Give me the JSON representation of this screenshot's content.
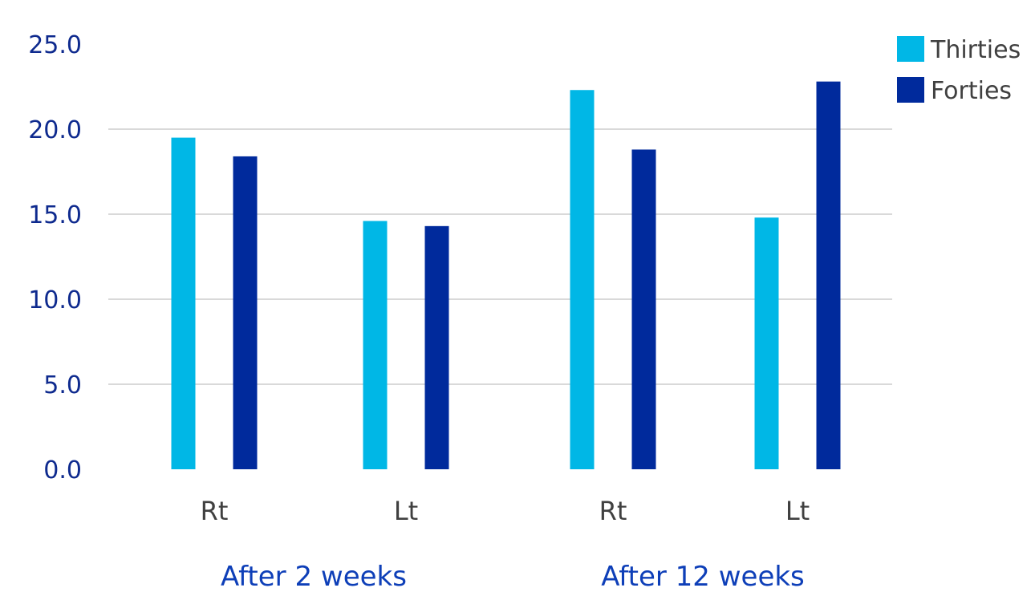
{
  "chart_data": {
    "type": "bar",
    "categories": [
      "Rt",
      "Lt",
      "Rt",
      "Lt"
    ],
    "groups": [
      {
        "label": "After 2 weeks",
        "categories": [
          "Rt",
          "Lt"
        ]
      },
      {
        "label": "After 12 weeks",
        "categories": [
          "Rt",
          "Lt"
        ]
      }
    ],
    "series": [
      {
        "name": "Thirties",
        "color": "#00B7E6",
        "values": [
          19.5,
          14.6,
          22.3,
          14.8
        ]
      },
      {
        "name": "Forties",
        "color": "#002A9C",
        "values": [
          18.4,
          14.3,
          18.8,
          22.8
        ]
      }
    ],
    "ylim": [
      0,
      25
    ],
    "yticks": [
      "0.0",
      "5.0",
      "10.0",
      "15.0",
      "20.0",
      "25.0"
    ],
    "grid": true,
    "legend": "top-right"
  }
}
